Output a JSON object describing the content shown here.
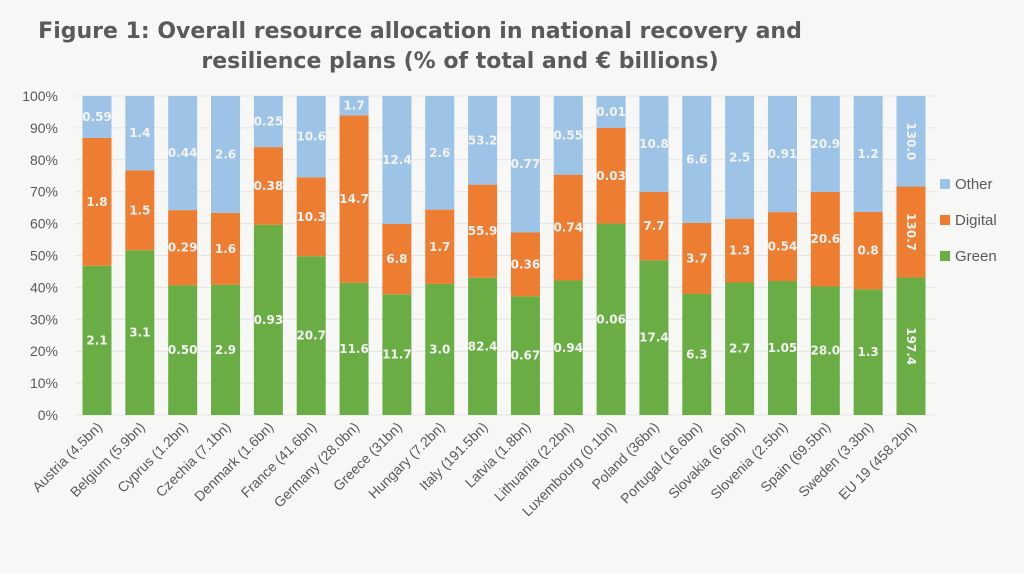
{
  "chart_data": {
    "type": "bar",
    "stacked": "100%",
    "title": "Figure 1: Overall resource allocation in national recovery and resilience plans (% of total and € billions)",
    "title_lines": [
      "Figure 1: Overall resource allocation in national recovery and",
      "resilience plans (% of total and € billions)"
    ],
    "xlabel": "",
    "ylabel": "",
    "ylim": [
      0,
      100
    ],
    "yticks": [
      "0%",
      "10%",
      "20%",
      "30%",
      "40%",
      "50%",
      "60%",
      "70%",
      "80%",
      "90%",
      "100%"
    ],
    "grid": true,
    "legend_position": "right",
    "categories": [
      "Austria (4.5bn)",
      "Belgium (5.9bn)",
      "Cyprus (1.2bn)",
      "Czechia (7.1bn)",
      "Denmark (1.6bn)",
      "France (41.6bn)",
      "Germany (28.0bn)",
      "Greece (31bn)",
      "Hungary (7.2bn)",
      "Italy (191.5bn)",
      "Latvia (1.8bn)",
      "Lithuania (2.2bn)",
      "Luxembourg (0.1bn)",
      "Poland (36bn)",
      "Portugal (16.6bn)",
      "Slovakia (6.6bn)",
      "Slovenia (2.5bn)",
      "Spain (69.5bn)",
      "Sweden (3.3bn)",
      "EU 19 (458.2bn)"
    ],
    "series": [
      {
        "name": "Green",
        "color": "#6aad45",
        "values": [
          2.1,
          3.1,
          0.5,
          2.9,
          0.93,
          20.7,
          11.6,
          11.7,
          3.0,
          82.4,
          0.67,
          0.94,
          0.06,
          17.4,
          6.3,
          2.7,
          1.05,
          28.0,
          1.3,
          197.4
        ],
        "labels": [
          "2.1",
          "3.1",
          "0.50",
          "2.9",
          "0.93",
          "20.7",
          "11.6",
          "11.7",
          "3.0",
          "82.4",
          "0.67",
          "0.94",
          "0.06",
          "17.4",
          "6.3",
          "2.7",
          "1.05",
          "28.0",
          "1.3",
          "197.4"
        ]
      },
      {
        "name": "Digital",
        "color": "#ed7d31",
        "values": [
          1.8,
          1.5,
          0.29,
          1.6,
          0.38,
          10.3,
          14.7,
          6.8,
          1.7,
          55.9,
          0.36,
          0.74,
          0.03,
          7.7,
          3.7,
          1.3,
          0.54,
          20.6,
          0.8,
          130.7
        ],
        "labels": [
          "1.8",
          "1.5",
          "0.29",
          "1.6",
          "0.38",
          "10.3",
          "14.7",
          "6.8",
          "1.7",
          "55.9",
          "0.36",
          "0.74",
          "0.03",
          "7.7",
          "3.7",
          "1.3",
          "0.54",
          "20.6",
          "0.8",
          "130.7"
        ]
      },
      {
        "name": "Other",
        "color": "#9dc3e6",
        "values": [
          0.59,
          1.4,
          0.44,
          2.6,
          0.25,
          10.6,
          1.7,
          12.4,
          2.6,
          53.2,
          0.77,
          0.55,
          0.01,
          10.8,
          6.6,
          2.5,
          0.91,
          20.9,
          1.2,
          130.0
        ],
        "labels": [
          "0.59",
          "1.4",
          "0.44",
          "2.6",
          "0.25",
          "10.6",
          "1.7",
          "12.4",
          "2.6",
          "53.2",
          "0.77",
          "0.55",
          "0.01",
          "10.8",
          "6.6",
          "2.5",
          "0.91",
          "20.9",
          "1.2",
          "130.0"
        ]
      }
    ],
    "legend_order": [
      "Other",
      "Digital",
      "Green"
    ],
    "unit": "€ billions (labels), % of total (bar height)"
  }
}
